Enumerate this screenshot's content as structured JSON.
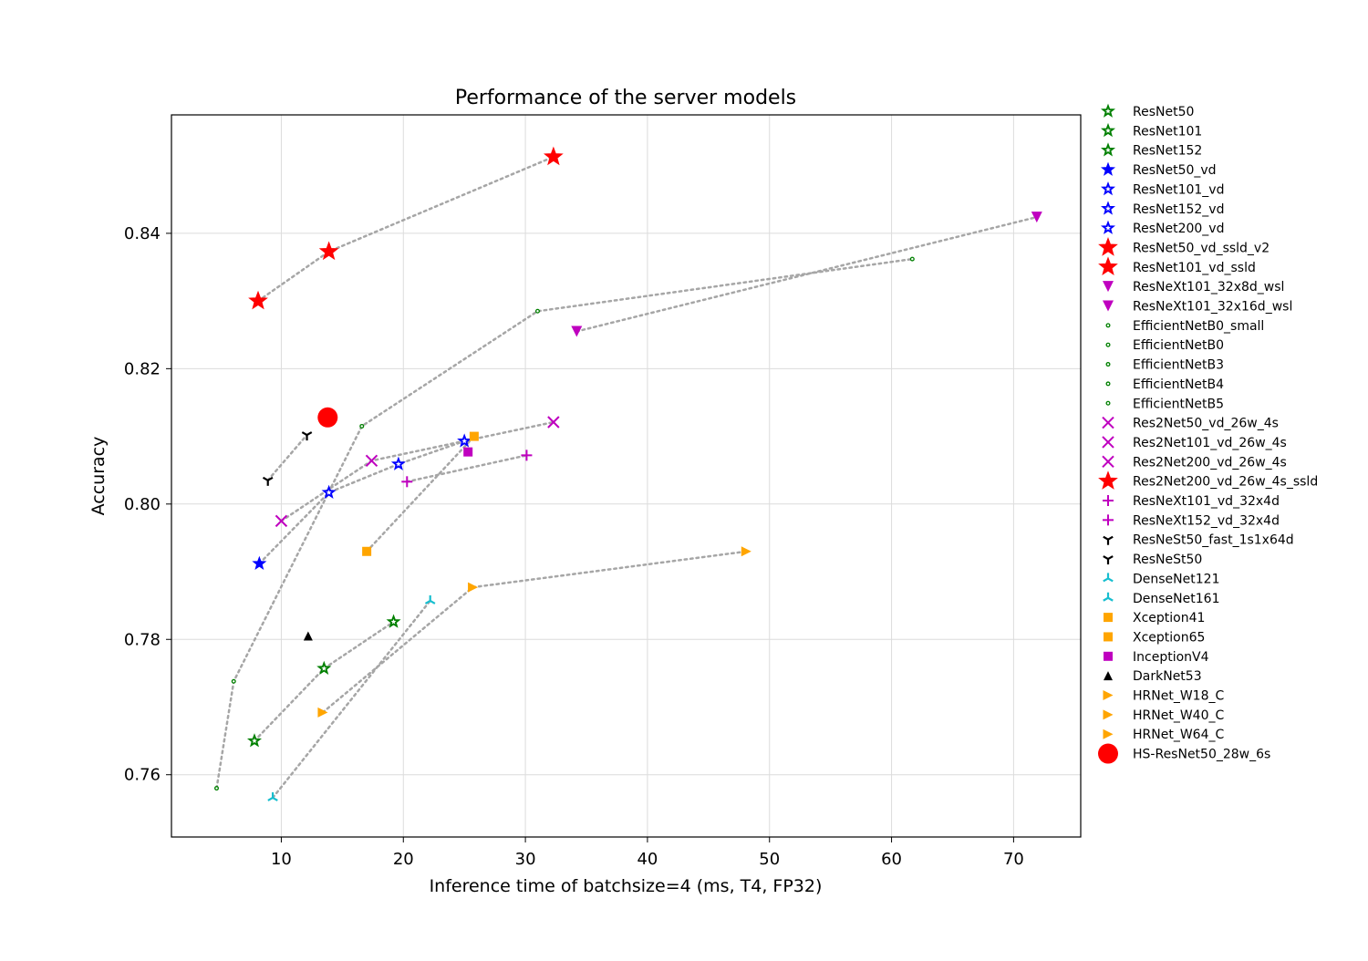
{
  "chart_data": {
    "type": "scatter",
    "title": "Performance of the server models",
    "xlabel": "Inference time of batchsize=4 (ms, T4, FP32)",
    "ylabel": "Accuracy",
    "xlim": [
      1,
      75.5
    ],
    "ylim": [
      0.7508,
      0.8575
    ],
    "xticks": [
      10,
      20,
      30,
      40,
      50,
      60,
      70
    ],
    "yticks": [
      0.76,
      0.78,
      0.8,
      0.82,
      0.84
    ],
    "ytick_labels": [
      "0.76",
      "0.78",
      "0.80",
      "0.82",
      "0.84"
    ],
    "grid": true,
    "legend_position": "outside right",
    "connector_color": "#a6a6a6",
    "series": [
      {
        "name": "ResNet50",
        "marker": "star",
        "color": "#008000",
        "hollow": true,
        "size": 14,
        "x": [
          13.5
        ],
        "y": [
          0.7757
        ]
      },
      {
        "name": "ResNet101",
        "marker": "star",
        "color": "#008000",
        "hollow": true,
        "size": 14,
        "x": [
          19.2
        ],
        "y": [
          0.7826
        ]
      },
      {
        "name": "ResNet152",
        "marker": "star",
        "color": "#008000",
        "hollow": true,
        "size": 14,
        "x": [
          7.8
        ],
        "y": [
          0.765
        ]
      },
      {
        "name": "ResNet50_vd",
        "marker": "star",
        "color": "#0000ff",
        "hollow": false,
        "size": 14,
        "x": [
          8.2
        ],
        "y": [
          0.7912
        ]
      },
      {
        "name": "ResNet101_vd",
        "marker": "star",
        "color": "#0000ff",
        "hollow": true,
        "size": 14,
        "x": [
          13.9
        ],
        "y": [
          0.8017
        ]
      },
      {
        "name": "ResNet152_vd",
        "marker": "star",
        "color": "#0000ff",
        "hollow": true,
        "size": 14,
        "x": [
          19.6
        ],
        "y": [
          0.8059
        ]
      },
      {
        "name": "ResNet200_vd",
        "marker": "star",
        "color": "#0000ff",
        "hollow": true,
        "size": 14,
        "x": [
          25.0
        ],
        "y": [
          0.8093
        ]
      },
      {
        "name": "ResNet50_vd_ssld_v2",
        "marker": "star",
        "color": "#ff0000",
        "hollow": false,
        "size": 20,
        "x": [
          8.1
        ],
        "y": [
          0.83
        ]
      },
      {
        "name": "ResNet101_vd_ssld",
        "marker": "star",
        "color": "#ff0000",
        "hollow": false,
        "size": 20,
        "x": [
          13.9
        ],
        "y": [
          0.8373
        ]
      },
      {
        "name": "ResNeXt101_32x8d_wsl",
        "marker": "tri_down",
        "color": "#bf00bf",
        "hollow": false,
        "size": 12,
        "x": [
          34.2
        ],
        "y": [
          0.8255
        ]
      },
      {
        "name": "ResNeXt101_32x16d_wsl",
        "marker": "tri_down",
        "color": "#bf00bf",
        "hollow": false,
        "size": 12,
        "x": [
          71.9
        ],
        "y": [
          0.8424
        ]
      },
      {
        "name": "EfficientNetB0_small",
        "marker": "circle",
        "color": "#008000",
        "hollow": false,
        "size": 5,
        "x": [
          4.7
        ],
        "y": [
          0.758
        ]
      },
      {
        "name": "EfficientNetB0",
        "marker": "circle",
        "color": "#008000",
        "hollow": false,
        "size": 5,
        "x": [
          6.1
        ],
        "y": [
          0.7738
        ]
      },
      {
        "name": "EfficientNetB3",
        "marker": "circle",
        "color": "#008000",
        "hollow": false,
        "size": 5,
        "x": [
          16.6
        ],
        "y": [
          0.8115
        ]
      },
      {
        "name": "EfficientNetB4",
        "marker": "circle",
        "color": "#008000",
        "hollow": false,
        "size": 5,
        "x": [
          31.0
        ],
        "y": [
          0.8285
        ]
      },
      {
        "name": "EfficientNetB5",
        "marker": "circle",
        "color": "#008000",
        "hollow": false,
        "size": 5,
        "x": [
          61.7
        ],
        "y": [
          0.8362
        ]
      },
      {
        "name": "Res2Net50_vd_26w_4s",
        "marker": "x",
        "color": "#bf00bf",
        "hollow": false,
        "size": 12,
        "x": [
          10.0
        ],
        "y": [
          0.7975
        ]
      },
      {
        "name": "Res2Net101_vd_26w_4s",
        "marker": "x",
        "color": "#bf00bf",
        "hollow": false,
        "size": 12,
        "x": [
          17.4
        ],
        "y": [
          0.8064
        ]
      },
      {
        "name": "Res2Net200_vd_26w_4s",
        "marker": "x",
        "color": "#bf00bf",
        "hollow": false,
        "size": 12,
        "x": [
          32.3
        ],
        "y": [
          0.8121
        ]
      },
      {
        "name": "Res2Net200_vd_26w_4s_ssld",
        "marker": "star",
        "color": "#ff0000",
        "hollow": false,
        "size": 20,
        "x": [
          32.3
        ],
        "y": [
          0.8513
        ]
      },
      {
        "name": "ResNeXt101_vd_32x4d",
        "marker": "plus",
        "color": "#bf00bf",
        "hollow": false,
        "size": 12,
        "x": [
          20.3
        ],
        "y": [
          0.8033
        ]
      },
      {
        "name": "ResNeXt152_vd_32x4d",
        "marker": "plus",
        "color": "#bf00bf",
        "hollow": false,
        "size": 12,
        "x": [
          30.1
        ],
        "y": [
          0.8072
        ]
      },
      {
        "name": "ResNeSt50_fast_1s1x64d",
        "marker": "tri_y",
        "color": "#000000",
        "hollow": false,
        "size": 12,
        "x": [
          8.9
        ],
        "y": [
          0.8035
        ]
      },
      {
        "name": "ResNeSt50",
        "marker": "tri_y",
        "color": "#000000",
        "hollow": false,
        "size": 12,
        "x": [
          12.1
        ],
        "y": [
          0.8102
        ]
      },
      {
        "name": "DenseNet121",
        "marker": "tri_y_down",
        "color": "#17becf",
        "hollow": false,
        "size": 12,
        "x": [
          9.3
        ],
        "y": [
          0.7566
        ]
      },
      {
        "name": "DenseNet161",
        "marker": "tri_y_down",
        "color": "#17becf",
        "hollow": false,
        "size": 12,
        "x": [
          22.2
        ],
        "y": [
          0.7857
        ]
      },
      {
        "name": "Xception41",
        "marker": "square",
        "color": "#ffa500",
        "hollow": false,
        "size": 10,
        "x": [
          17.0
        ],
        "y": [
          0.793
        ]
      },
      {
        "name": "Xception65",
        "marker": "square",
        "color": "#ffa500",
        "hollow": false,
        "size": 10,
        "x": [
          25.8
        ],
        "y": [
          0.81
        ]
      },
      {
        "name": "InceptionV4",
        "marker": "square",
        "color": "#bf00bf",
        "hollow": false,
        "size": 10,
        "x": [
          25.3
        ],
        "y": [
          0.8077
        ]
      },
      {
        "name": "DarkNet53",
        "marker": "tri_up",
        "color": "#000000",
        "hollow": false,
        "size": 10,
        "x": [
          12.2
        ],
        "y": [
          0.7805
        ]
      },
      {
        "name": "HRNet_W18_C",
        "marker": "tri_right",
        "color": "#ffa500",
        "hollow": false,
        "size": 11,
        "x": [
          13.4
        ],
        "y": [
          0.7692
        ]
      },
      {
        "name": "HRNet_W40_C",
        "marker": "tri_right",
        "color": "#ffa500",
        "hollow": false,
        "size": 11,
        "x": [
          25.7
        ],
        "y": [
          0.7877
        ]
      },
      {
        "name": "HRNet_W64_C",
        "marker": "tri_right",
        "color": "#ffa500",
        "hollow": false,
        "size": 11,
        "x": [
          48.1
        ],
        "y": [
          0.793
        ]
      },
      {
        "name": "HS-ResNet50_28w_6s",
        "marker": "circle",
        "color": "#ff0000",
        "hollow": false,
        "size": 22,
        "x": [
          13.8
        ],
        "y": [
          0.8128
        ]
      }
    ],
    "connectors": [
      [
        "ResNet152",
        "ResNet50",
        "ResNet101"
      ],
      [
        "ResNet50_vd",
        "ResNet101_vd",
        "ResNet152_vd",
        "ResNet200_vd"
      ],
      [
        "ResNet50_vd_ssld_v2",
        "ResNet101_vd_ssld",
        "Res2Net200_vd_26w_4s_ssld"
      ],
      [
        "ResNeXt101_32x8d_wsl",
        "ResNeXt101_32x16d_wsl"
      ],
      [
        "EfficientNetB0_small",
        "EfficientNetB0",
        "EfficientNetB3",
        "EfficientNetB4",
        "EfficientNetB5"
      ],
      [
        "Res2Net50_vd_26w_4s",
        "Res2Net101_vd_26w_4s",
        "Res2Net200_vd_26w_4s"
      ],
      [
        "ResNeXt101_vd_32x4d",
        "ResNeXt152_vd_32x4d"
      ],
      [
        "ResNeSt50_fast_1s1x64d",
        "ResNeSt50"
      ],
      [
        "DenseNet121",
        "DenseNet161"
      ],
      [
        "Xception41",
        "Xception65"
      ],
      [
        "HRNet_W18_C",
        "HRNet_W40_C",
        "HRNet_W64_C"
      ]
    ]
  }
}
